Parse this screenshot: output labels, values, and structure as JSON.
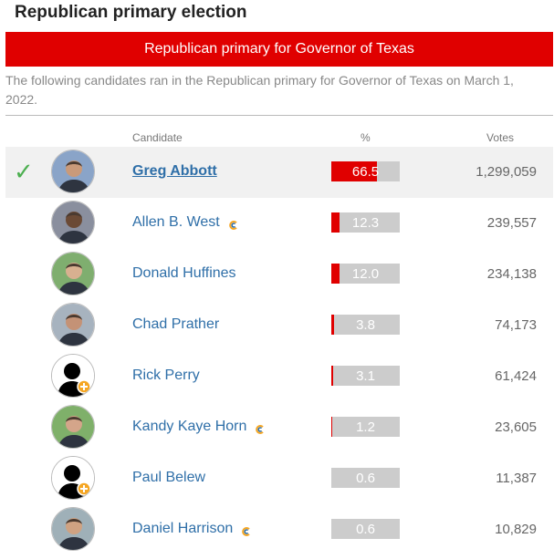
{
  "page": {
    "title": "Republican primary election",
    "banner": "Republican primary for Governor of Texas",
    "description": "The following candidates ran in the Republican primary for Governor of Texas on March 1, 2022."
  },
  "columns": {
    "candidate": "Candidate",
    "percent": "%",
    "votes": "Votes"
  },
  "colors": {
    "accent": "#e00000",
    "link": "#2f6fa8",
    "check": "#4caf50",
    "bar_track": "#cccccc"
  },
  "candidates": [
    {
      "name": "Greg Abbott",
      "percent": "66.5",
      "votes": "1,299,059",
      "winner": true,
      "incumbent": false,
      "avatar": "photo"
    },
    {
      "name": "Allen B. West",
      "percent": "12.3",
      "votes": "239,557",
      "winner": false,
      "incumbent": true,
      "avatar": "photo"
    },
    {
      "name": "Donald Huffines",
      "percent": "12.0",
      "votes": "234,138",
      "winner": false,
      "incumbent": false,
      "avatar": "photo"
    },
    {
      "name": "Chad Prather",
      "percent": "3.8",
      "votes": "74,173",
      "winner": false,
      "incumbent": false,
      "avatar": "photo"
    },
    {
      "name": "Rick Perry",
      "percent": "3.1",
      "votes": "61,424",
      "winner": false,
      "incumbent": false,
      "avatar": "placeholder"
    },
    {
      "name": "Kandy Kaye Horn",
      "percent": "1.2",
      "votes": "23,605",
      "winner": false,
      "incumbent": true,
      "avatar": "photo"
    },
    {
      "name": "Paul Belew",
      "percent": "0.6",
      "votes": "11,387",
      "winner": false,
      "incumbent": false,
      "avatar": "placeholder"
    },
    {
      "name": "Daniel Harrison",
      "percent": "0.6",
      "votes": "10,829",
      "winner": false,
      "incumbent": true,
      "avatar": "photo"
    }
  ]
}
